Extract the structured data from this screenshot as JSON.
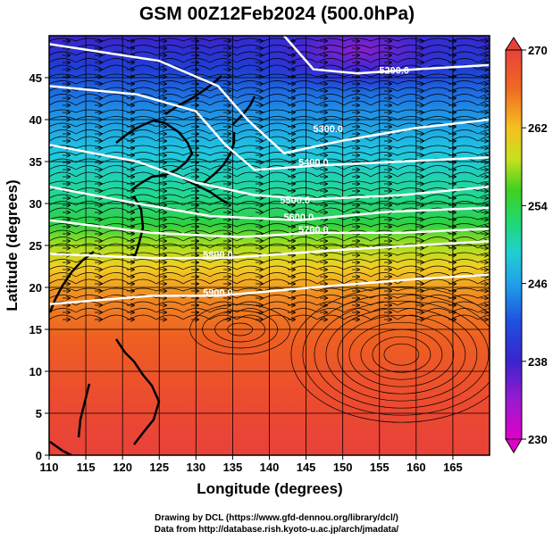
{
  "title": "GSM 00Z12Feb2024 (500.0hPa)",
  "map": {
    "xlabel": "Longitude (degrees)",
    "ylabel": "Latitude  (degrees)",
    "lon_range": [
      110,
      170
    ],
    "lat_range": [
      0,
      50
    ],
    "x_ticks": [
      "110",
      "115",
      "120",
      "125",
      "130",
      "135",
      "140",
      "145",
      "150",
      "155",
      "160",
      "165"
    ],
    "y_ticks": [
      "0",
      "5",
      "10",
      "15",
      "20",
      "25",
      "30",
      "35",
      "40",
      "45"
    ],
    "grid": true,
    "field": "temperature (K)",
    "overlay": "height contours (m) + wind streamlines"
  },
  "colorbar": {
    "ticks": [
      "230",
      "238",
      "246",
      "254",
      "262",
      "270"
    ],
    "range": [
      230,
      270
    ],
    "colors": [
      "#e000c8",
      "#7a1dd1",
      "#1f2fd6",
      "#1f7fe6",
      "#20c8e0",
      "#20d890",
      "#2ecc2e",
      "#b8e020",
      "#f0d020",
      "#f59a20",
      "#ef5a22",
      "#e8413a"
    ]
  },
  "contours": [
    {
      "label": "5200.0",
      "lon": 157,
      "lat": 45.5
    },
    {
      "label": "5300.0",
      "lon": 148,
      "lat": 38.5
    },
    {
      "label": "5400.0",
      "lon": 146,
      "lat": 34.5
    },
    {
      "label": "5500.0",
      "lon": 143.5,
      "lat": 30
    },
    {
      "label": "5600.0",
      "lon": 144,
      "lat": 28
    },
    {
      "label": "5700.0",
      "lon": 146,
      "lat": 26.5
    },
    {
      "label": "5800.0",
      "lon": 133,
      "lat": 23.5
    },
    {
      "label": "5900.0",
      "lon": 133,
      "lat": 19
    }
  ],
  "credits": [
    "Drawing by DCL (https://www.gfd-dennou.org/library/dcl/)",
    "Data from http://database.rish.kyoto-u.ac.jp/arch/jmadata/"
  ]
}
